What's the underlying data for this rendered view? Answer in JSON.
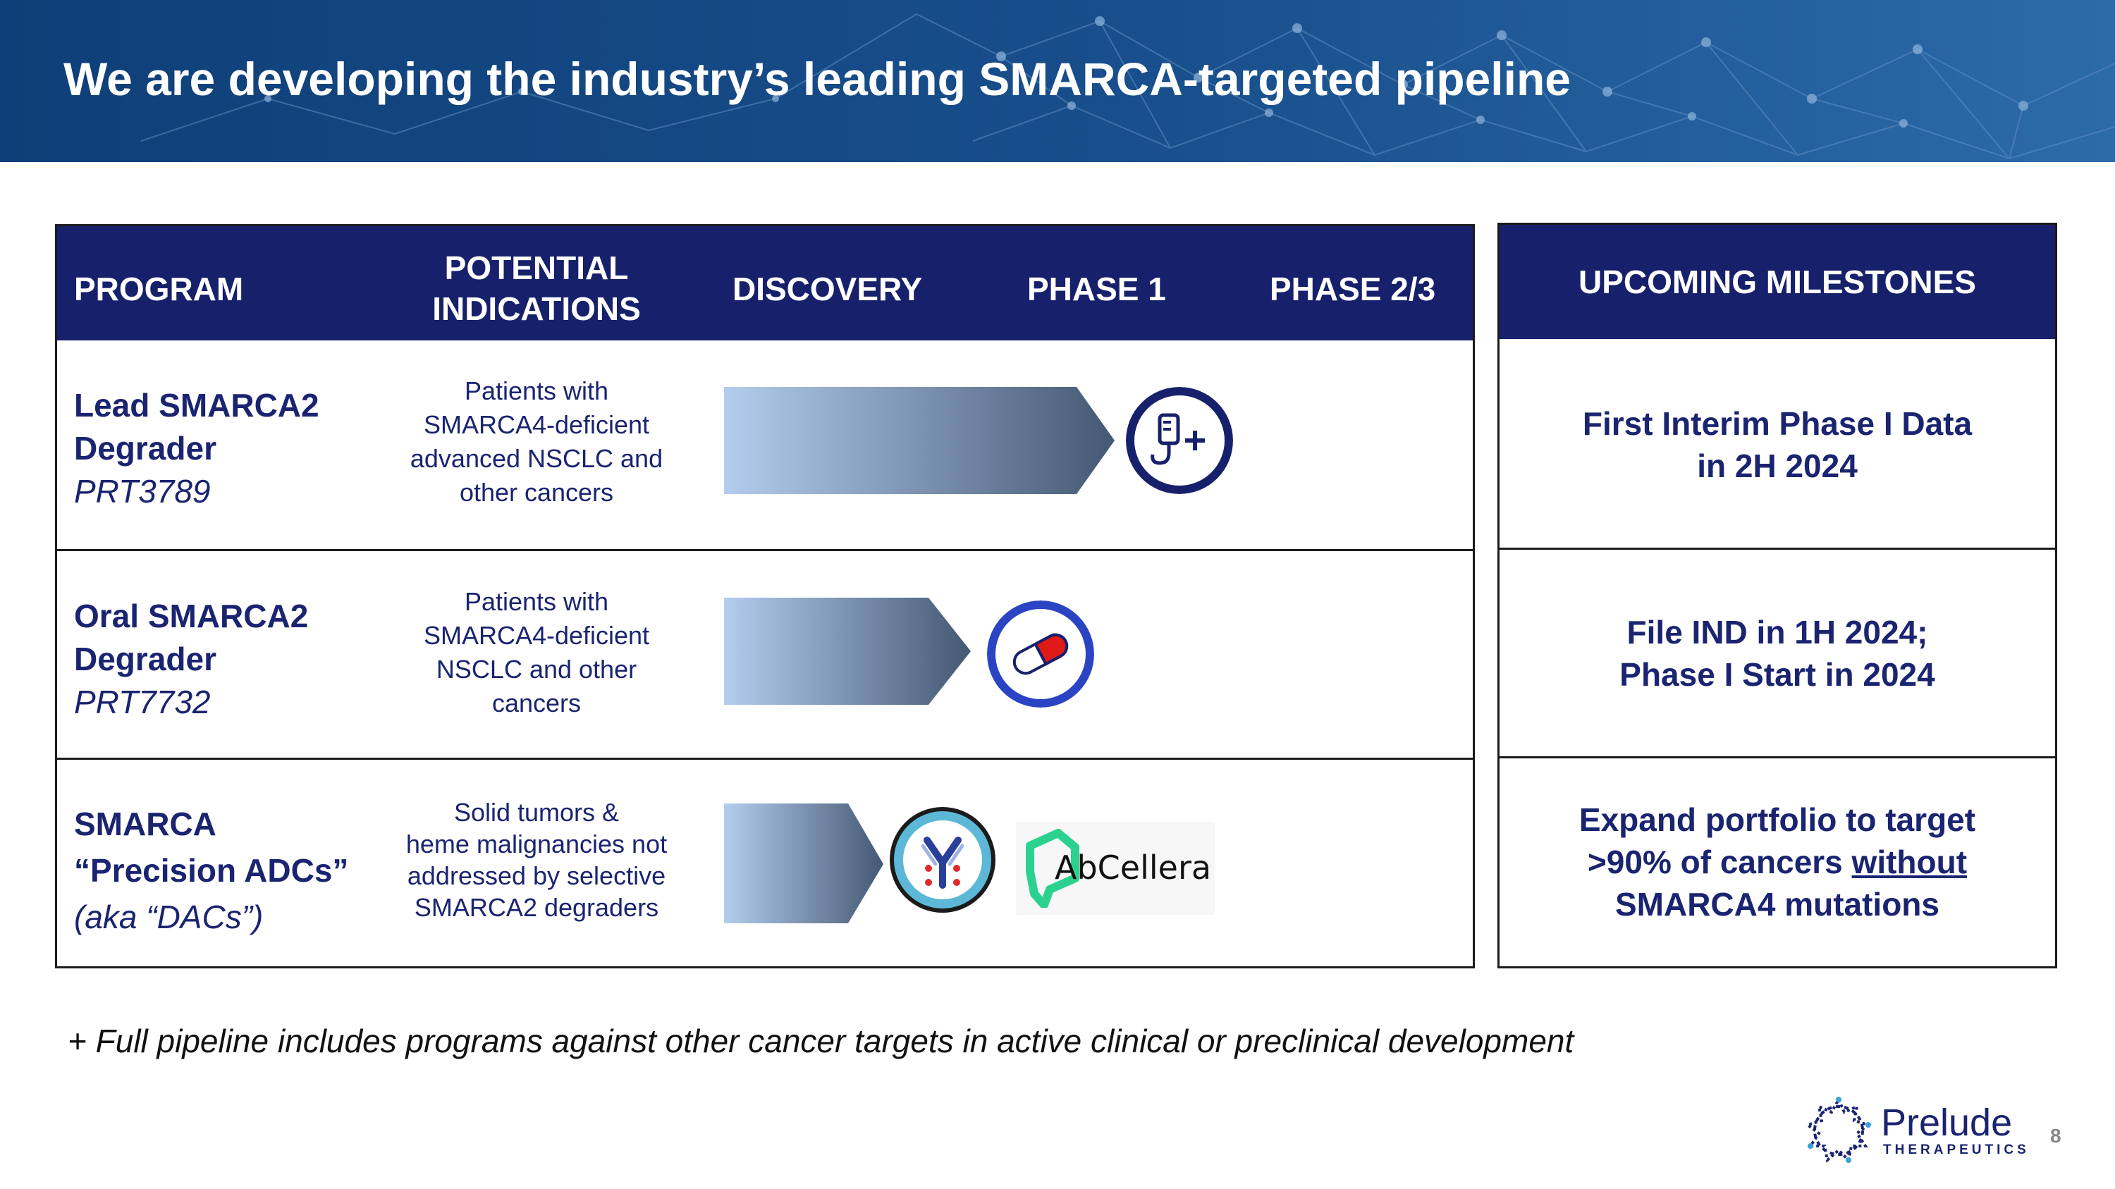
{
  "slide": {
    "title": "We are developing the industry’s leading SMARCA-targeted pipeline",
    "page_number": "8"
  },
  "table": {
    "headers": {
      "program": "PROGRAM",
      "indications_line1": "POTENTIAL",
      "indications_line2": "INDICATIONS",
      "discovery": "DISCOVERY",
      "phase1": "PHASE 1",
      "phase23": "PHASE 2/3"
    },
    "rows": [
      {
        "name_line1": "Lead SMARCA2",
        "name_line2": "Degrader",
        "code": "PRT3789",
        "indication": [
          "Patients with",
          "SMARCA4-deficient",
          "advanced NSCLC and",
          "other cancers"
        ],
        "stage": "Phase 1",
        "modality_icon": "iv-drip-icon"
      },
      {
        "name_line1": "Oral SMARCA2",
        "name_line2": "Degrader",
        "code": "PRT7732",
        "indication": [
          "Patients with",
          "SMARCA4-deficient",
          "NSCLC and other",
          "cancers"
        ],
        "stage": "Discovery",
        "modality_icon": "capsule-icon"
      },
      {
        "name_line1": "SMARCA",
        "name_line2": "“Precision ADCs”",
        "code": "(aka “DACs”)",
        "indication": [
          "Solid tumors &",
          "heme malignancies not",
          "addressed by selective",
          "SMARCA2 degraders"
        ],
        "stage": "Discovery",
        "modality_icon": "antibody-icon",
        "partner": "AbCellera"
      }
    ]
  },
  "milestones": {
    "header": "UPCOMING MILESTONES",
    "items": [
      {
        "line1": "First Interim Phase I Data",
        "line2": "in 2H 2024"
      },
      {
        "line1": "File IND in 1H 2024;",
        "line2": "Phase I Start in 2024"
      },
      {
        "line1": "Expand portfolio to target",
        "line2_pre": ">90% of cancers ",
        "line2_underlined": "without",
        "line3": "SMARCA4 mutations"
      }
    ]
  },
  "footnote": "+ Full pipeline includes programs against other cancer targets in active clinical or preclinical development",
  "logo": {
    "name": "Prelude",
    "subtitle": "THERAPEUTICS"
  },
  "colors": {
    "navy": "#17206b",
    "text": "#1a2470",
    "arrow_start": "#b4cdee",
    "arrow_end": "#445873"
  }
}
